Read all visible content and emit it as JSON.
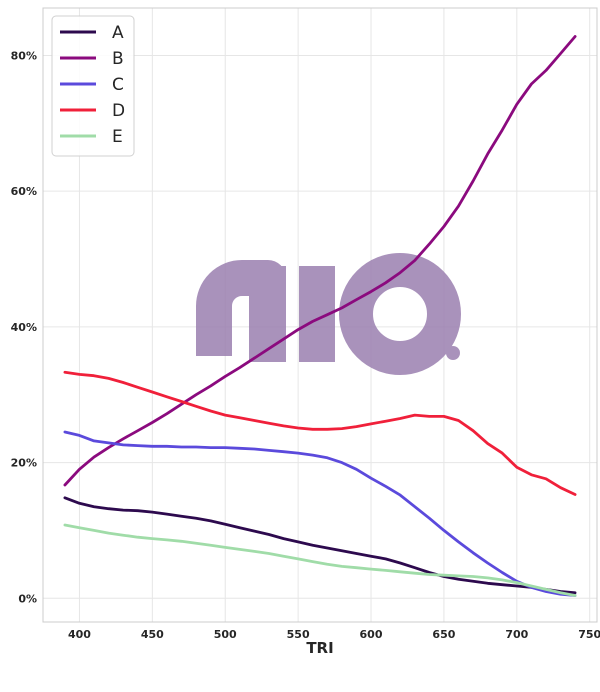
{
  "chart_data": {
    "type": "line",
    "xlabel": "TRI",
    "ylabel": "",
    "xlim": [
      375,
      755
    ],
    "ylim": [
      -0.035,
      0.87
    ],
    "x_ticks": [
      400,
      450,
      500,
      550,
      600,
      650,
      700,
      750
    ],
    "y_ticks": [
      0,
      0.2,
      0.4,
      0.6,
      0.8
    ],
    "y_tick_labels": [
      "0%",
      "20%",
      "40%",
      "60%",
      "80%"
    ],
    "grid": true,
    "legend_position": "top-left",
    "x": [
      390,
      400,
      410,
      420,
      430,
      440,
      450,
      460,
      470,
      480,
      490,
      500,
      510,
      520,
      530,
      540,
      550,
      560,
      570,
      580,
      590,
      600,
      610,
      620,
      630,
      640,
      650,
      660,
      670,
      680,
      690,
      700,
      710,
      720,
      730,
      740
    ],
    "series": [
      {
        "name": "A",
        "color": "#2d0a4e",
        "values": [
          0.148,
          0.14,
          0.135,
          0.132,
          0.13,
          0.129,
          0.127,
          0.124,
          0.121,
          0.118,
          0.114,
          0.109,
          0.104,
          0.099,
          0.094,
          0.088,
          0.083,
          0.078,
          0.074,
          0.07,
          0.066,
          0.062,
          0.058,
          0.052,
          0.045,
          0.038,
          0.032,
          0.028,
          0.025,
          0.022,
          0.02,
          0.018,
          0.016,
          0.013,
          0.01,
          0.008
        ]
      },
      {
        "name": "B",
        "color": "#8b0a7e",
        "values": [
          0.167,
          0.19,
          0.208,
          0.222,
          0.235,
          0.247,
          0.259,
          0.272,
          0.286,
          0.3,
          0.313,
          0.327,
          0.34,
          0.354,
          0.368,
          0.382,
          0.396,
          0.408,
          0.418,
          0.428,
          0.44,
          0.452,
          0.465,
          0.48,
          0.498,
          0.522,
          0.548,
          0.578,
          0.615,
          0.655,
          0.69,
          0.728,
          0.758,
          0.778,
          0.803,
          0.828
        ]
      },
      {
        "name": "C",
        "color": "#5b4adc",
        "values": [
          0.245,
          0.24,
          0.232,
          0.229,
          0.226,
          0.225,
          0.224,
          0.224,
          0.223,
          0.223,
          0.222,
          0.222,
          0.221,
          0.22,
          0.218,
          0.216,
          0.214,
          0.211,
          0.207,
          0.2,
          0.19,
          0.177,
          0.165,
          0.152,
          0.135,
          0.118,
          0.1,
          0.083,
          0.067,
          0.052,
          0.038,
          0.025,
          0.016,
          0.01,
          0.006,
          0.004
        ]
      },
      {
        "name": "D",
        "color": "#f0203a",
        "values": [
          0.333,
          0.33,
          0.328,
          0.324,
          0.318,
          0.311,
          0.304,
          0.297,
          0.29,
          0.283,
          0.276,
          0.27,
          0.266,
          0.262,
          0.258,
          0.254,
          0.251,
          0.249,
          0.249,
          0.25,
          0.253,
          0.257,
          0.261,
          0.265,
          0.27,
          0.268,
          0.268,
          0.262,
          0.247,
          0.228,
          0.214,
          0.193,
          0.182,
          0.176,
          0.163,
          0.153
        ]
      },
      {
        "name": "E",
        "color": "#a0dca8",
        "values": [
          0.108,
          0.104,
          0.1,
          0.096,
          0.093,
          0.09,
          0.088,
          0.086,
          0.084,
          0.081,
          0.078,
          0.075,
          0.072,
          0.069,
          0.066,
          0.062,
          0.058,
          0.054,
          0.05,
          0.047,
          0.045,
          0.043,
          0.041,
          0.039,
          0.037,
          0.035,
          0.034,
          0.033,
          0.032,
          0.03,
          0.027,
          0.023,
          0.018,
          0.013,
          0.008,
          0.004
        ]
      }
    ]
  },
  "watermark": {
    "color": "#9b7fb0"
  }
}
